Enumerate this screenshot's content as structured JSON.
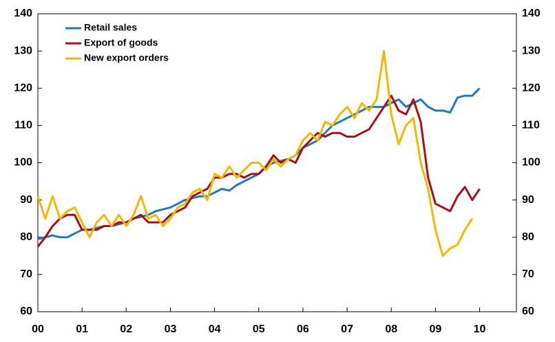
{
  "chart_data": {
    "type": "line",
    "x": [
      0,
      2,
      4,
      6,
      8,
      10,
      12,
      14,
      16,
      18,
      20,
      22,
      24,
      26,
      28,
      30,
      32,
      34,
      36,
      38,
      40,
      42,
      44,
      46,
      48,
      50,
      52,
      54,
      56,
      58,
      60,
      62,
      64,
      66,
      68,
      70,
      72,
      74,
      76,
      78,
      80,
      82,
      84,
      86,
      88,
      90,
      92,
      94,
      96,
      98,
      100,
      102,
      104,
      106,
      108,
      110,
      112,
      114,
      116,
      118,
      120
    ],
    "series": [
      {
        "name": "Retail sales",
        "color": "#1f78c1",
        "values": [
          79.5,
          80,
          80.5,
          80,
          80,
          81,
          82,
          82,
          82.5,
          83,
          83,
          83.5,
          84,
          85,
          85.5,
          86,
          87,
          87.5,
          88,
          89,
          90,
          90.5,
          91,
          91,
          92,
          93,
          92.5,
          94,
          95,
          96,
          97,
          99,
          100,
          100.5,
          101,
          102,
          104,
          105,
          106,
          108,
          110,
          111,
          112,
          113,
          114,
          115,
          115,
          115,
          116,
          117,
          115,
          116,
          117,
          115,
          114,
          114,
          113.5,
          117.5,
          118,
          118,
          120
        ]
      },
      {
        "name": "Export of goods",
        "color": "#a50f15",
        "values": [
          77.5,
          80,
          83,
          85,
          86,
          86,
          82,
          82,
          82,
          83,
          83,
          84,
          84,
          85,
          86,
          84,
          84,
          84,
          86,
          87,
          88,
          91,
          92,
          93,
          96,
          96,
          97,
          97,
          96,
          97,
          97,
          99,
          102,
          100,
          101,
          100,
          104,
          106,
          108,
          107,
          108,
          108,
          107,
          107,
          108,
          109,
          112,
          115,
          118,
          114,
          113,
          117,
          111,
          96,
          89,
          88,
          87,
          91,
          93.5,
          90,
          93
        ]
      },
      {
        "name": "New export orders",
        "color": "#f5b800",
        "values": [
          91,
          85,
          91,
          85,
          87,
          88,
          84,
          80,
          84,
          86,
          83,
          86,
          83,
          86,
          91,
          85,
          86,
          83,
          85,
          88,
          89,
          92,
          93,
          90,
          97,
          96,
          99,
          96,
          98,
          100,
          100,
          98,
          101,
          99,
          101,
          102,
          106,
          108,
          106,
          111,
          110,
          113,
          115,
          112,
          116,
          114,
          117,
          130,
          113,
          105,
          110,
          112,
          100,
          93,
          82,
          75,
          77,
          78,
          82,
          85,
          null
        ]
      }
    ],
    "xlim": [
      0,
      130
    ],
    "xticks": [
      {
        "value": 0,
        "label": "00"
      },
      {
        "value": 12,
        "label": "01"
      },
      {
        "value": 24,
        "label": "02"
      },
      {
        "value": 36,
        "label": "03"
      },
      {
        "value": 48,
        "label": "04"
      },
      {
        "value": 60,
        "label": "05"
      },
      {
        "value": 72,
        "label": "06"
      },
      {
        "value": 84,
        "label": "07"
      },
      {
        "value": 96,
        "label": "08"
      },
      {
        "value": 108,
        "label": "09"
      },
      {
        "value": 120,
        "label": "10"
      }
    ],
    "ylim": [
      60,
      140
    ],
    "yticks": [
      60,
      70,
      80,
      90,
      100,
      110,
      120,
      130,
      140
    ]
  }
}
